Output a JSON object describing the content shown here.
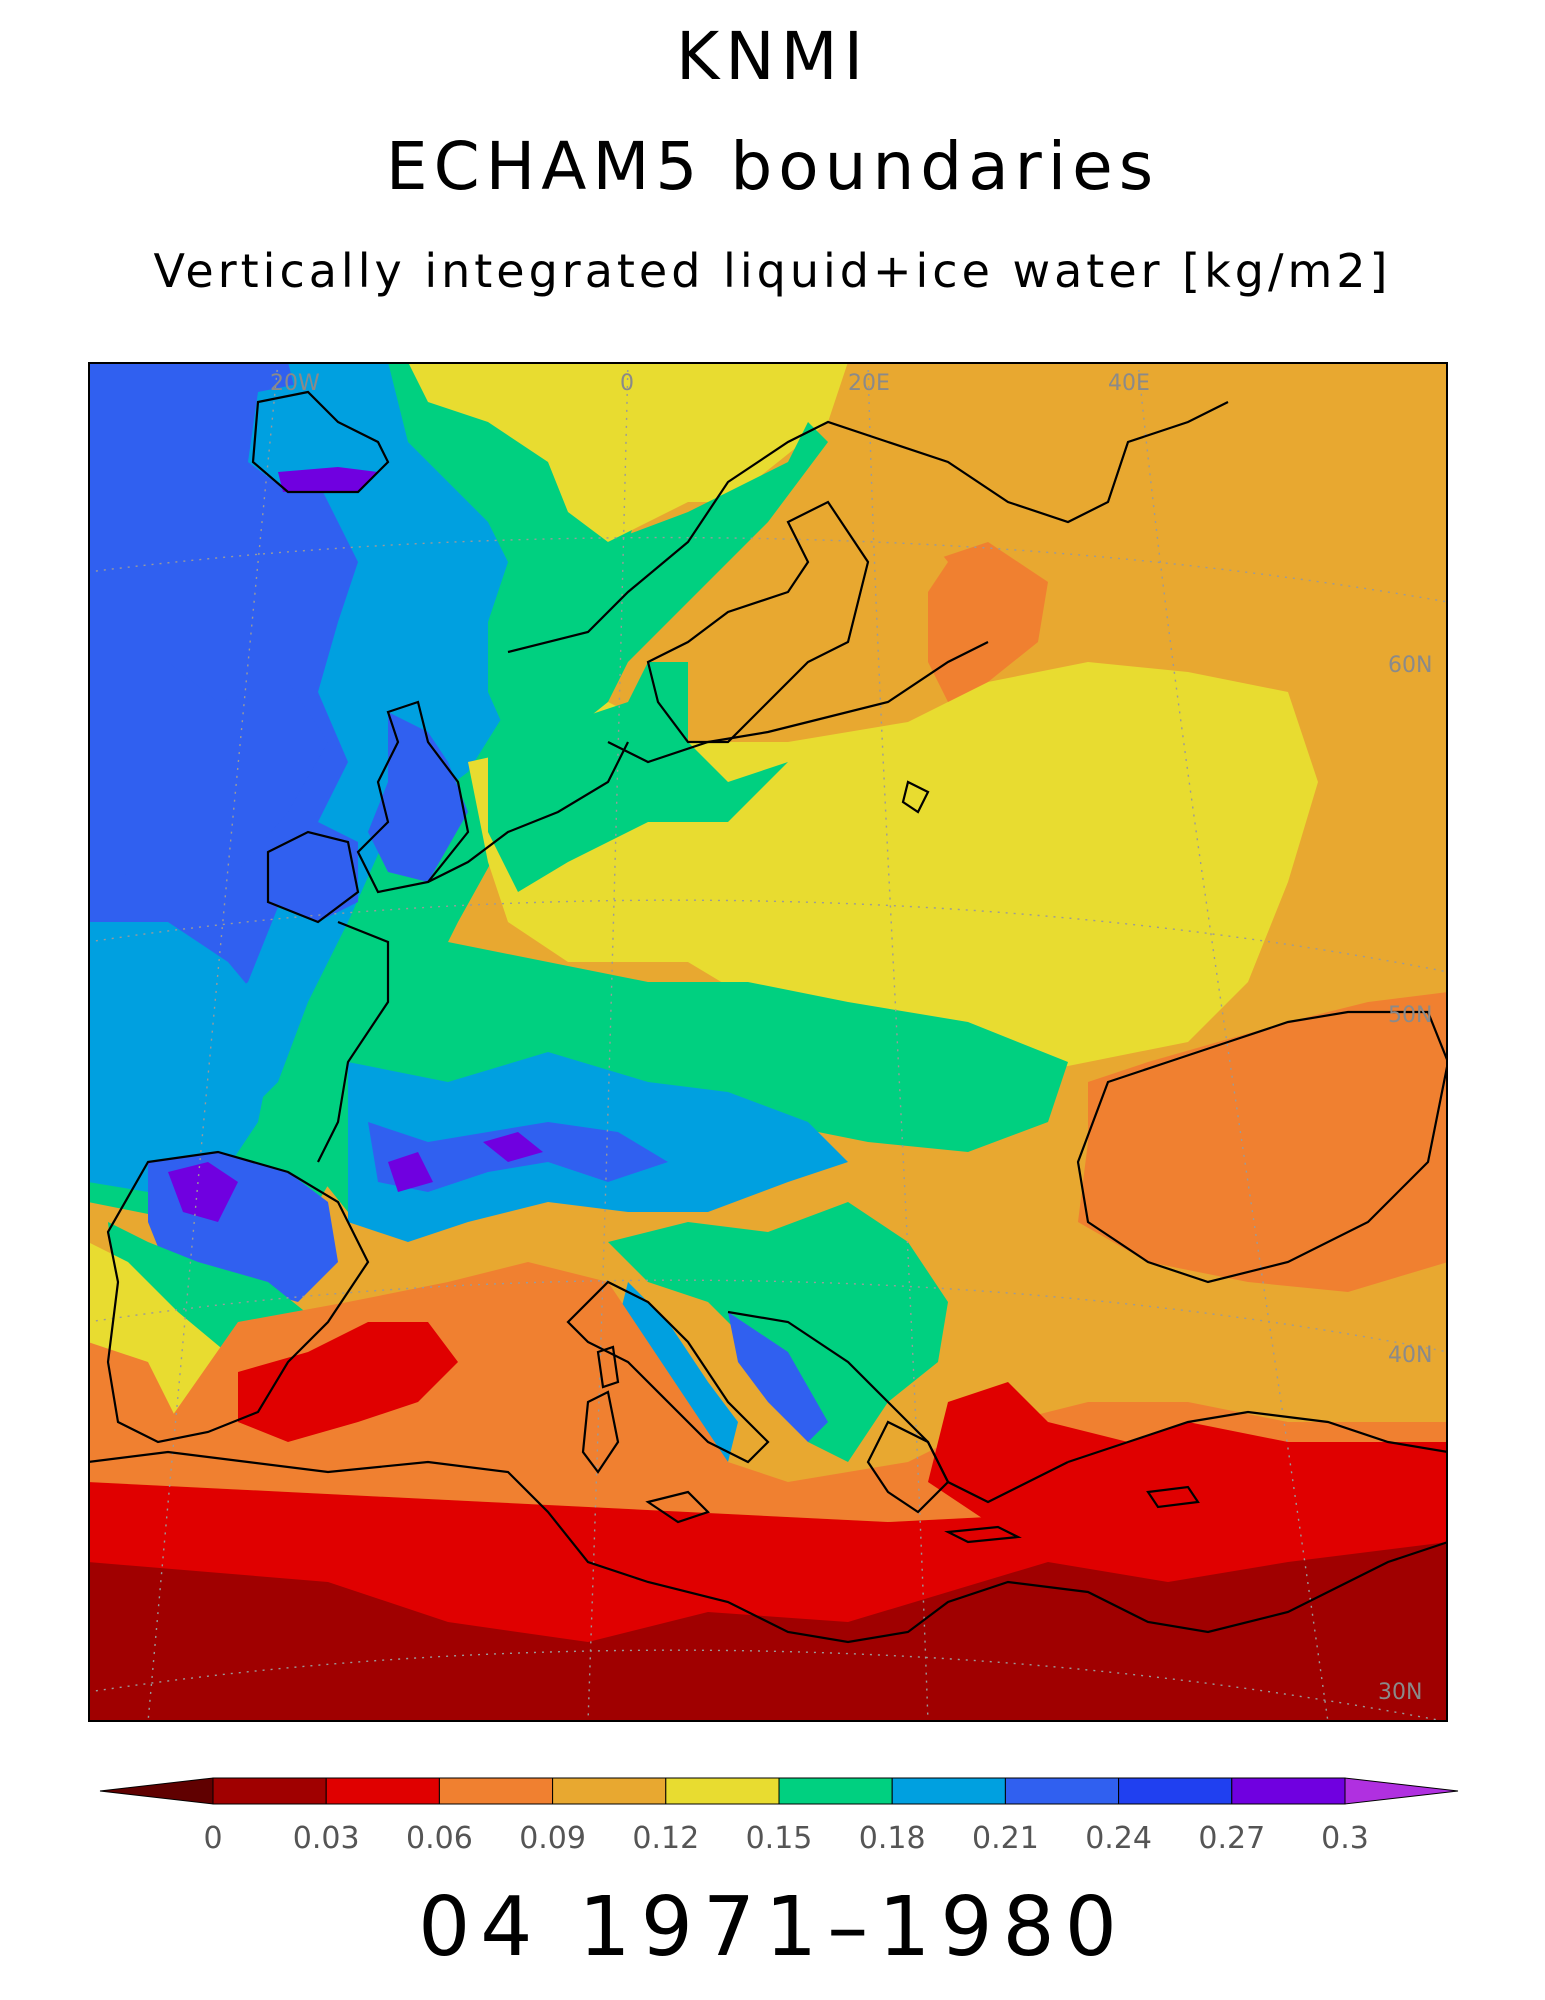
{
  "header": {
    "institute": "KNMI",
    "model": "ECHAM5 boundaries",
    "variable": "Vertically integrated liquid+ice water [kg/m2]"
  },
  "map": {
    "lon_labels": [
      "20W",
      "0",
      "20E",
      "40E"
    ],
    "lat_labels": [
      "60N",
      "50N",
      "40N",
      "30N"
    ],
    "coastline_color": "#000000",
    "gridline_color": "#9a9a9a"
  },
  "colorbar": {
    "ticks": [
      "0",
      "0.03",
      "0.06",
      "0.09",
      "0.12",
      "0.15",
      "0.18",
      "0.21",
      "0.24",
      "0.27",
      "0.3"
    ],
    "colors": [
      "#a00000",
      "#e00000",
      "#f08030",
      "#e8a830",
      "#e8dc30",
      "#00d080",
      "#00a0e0",
      "#3060f0",
      "#2040f0",
      "#7000e0"
    ],
    "under_color": "#600000",
    "over_color": "#b030e0"
  },
  "period": "04 1971–1980"
}
